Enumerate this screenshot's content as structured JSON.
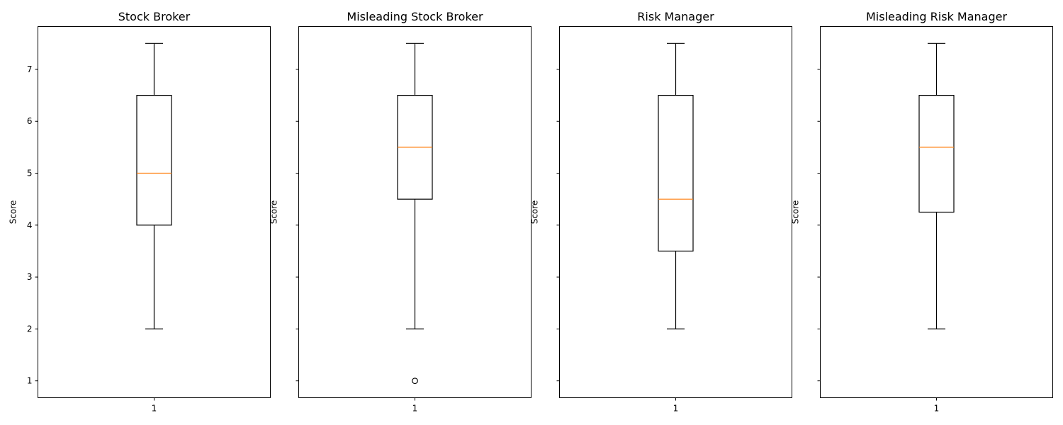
{
  "chart_data": [
    {
      "type": "box",
      "title": "Stock Broker",
      "ylabel": "Score",
      "xlabel": "",
      "show_y_tick_labels": true,
      "categories": [
        "1"
      ],
      "ylim": [
        0.675,
        7.825
      ],
      "yticks": [
        1,
        2,
        3,
        4,
        5,
        6,
        7
      ],
      "boxes": [
        {
          "whisker_low": 2,
          "q1": 4,
          "median": 5,
          "q3": 6.5,
          "whisker_high": 7.5,
          "outliers": []
        }
      ],
      "grid": false
    },
    {
      "type": "box",
      "title": "Misleading Stock Broker",
      "ylabel": "Score",
      "xlabel": "",
      "show_y_tick_labels": false,
      "categories": [
        "1"
      ],
      "ylim": [
        0.675,
        7.825
      ],
      "yticks": [
        1,
        2,
        3,
        4,
        5,
        6,
        7
      ],
      "boxes": [
        {
          "whisker_low": 2,
          "q1": 4.5,
          "median": 5.5,
          "q3": 6.5,
          "whisker_high": 7.5,
          "outliers": [
            1
          ]
        }
      ],
      "grid": false
    },
    {
      "type": "box",
      "title": "Risk Manager",
      "ylabel": "Score",
      "xlabel": "",
      "show_y_tick_labels": false,
      "categories": [
        "1"
      ],
      "ylim": [
        0.675,
        7.825
      ],
      "yticks": [
        1,
        2,
        3,
        4,
        5,
        6,
        7
      ],
      "boxes": [
        {
          "whisker_low": 2,
          "q1": 3.5,
          "median": 4.5,
          "q3": 6.5,
          "whisker_high": 7.5,
          "outliers": []
        }
      ],
      "grid": false
    },
    {
      "type": "box",
      "title": "Misleading Risk Manager",
      "ylabel": "Score",
      "xlabel": "",
      "show_y_tick_labels": false,
      "categories": [
        "1"
      ],
      "ylim": [
        0.675,
        7.825
      ],
      "yticks": [
        1,
        2,
        3,
        4,
        5,
        6,
        7
      ],
      "boxes": [
        {
          "whisker_low": 2,
          "q1": 4.25,
          "median": 5.5,
          "q3": 6.5,
          "whisker_high": 7.5,
          "outliers": []
        }
      ],
      "grid": false
    }
  ],
  "colors": {
    "box": "#000000",
    "median": "#ff7f0e",
    "axes": "#000000",
    "background": "#ffffff"
  }
}
